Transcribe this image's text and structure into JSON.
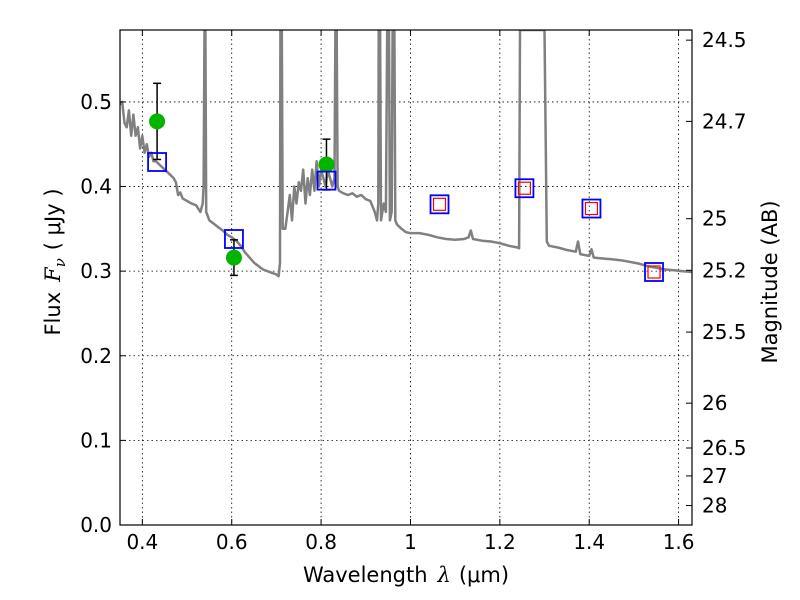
{
  "chart_data": {
    "type": "scatter",
    "xlabel": {
      "text": "Wavelength",
      "symbol": "λ",
      "unit": "(μm)"
    },
    "ylabel": {
      "text": "Flux",
      "symbol": "F",
      "subscript": "ν",
      "unit": "( μJy )"
    },
    "y2label": "Magnitude (AB)",
    "xlim": [
      0.35,
      1.63
    ],
    "ylim": [
      0.0,
      0.585
    ],
    "x_ticks": [
      {
        "v": 0.4,
        "label": "0.4"
      },
      {
        "v": 0.6,
        "label": "0.6"
      },
      {
        "v": 0.8,
        "label": "0.8"
      },
      {
        "v": 1.0,
        "label": "1"
      },
      {
        "v": 1.2,
        "label": "1.2"
      },
      {
        "v": 1.4,
        "label": "1.4"
      },
      {
        "v": 1.6,
        "label": "1.6"
      }
    ],
    "y_ticks": [
      {
        "v": 0.0,
        "label": "0.0"
      },
      {
        "v": 0.1,
        "label": "0.1"
      },
      {
        "v": 0.2,
        "label": "0.2"
      },
      {
        "v": 0.3,
        "label": "0.3"
      },
      {
        "v": 0.4,
        "label": "0.4"
      },
      {
        "v": 0.5,
        "label": "0.5"
      }
    ],
    "y2_ticks": [
      {
        "label": "24.5",
        "flux": 0.573
      },
      {
        "label": "24.7",
        "flux": 0.477
      },
      {
        "label": "25",
        "flux": 0.362
      },
      {
        "label": "25.2",
        "flux": 0.301
      },
      {
        "label": "25.5",
        "flux": 0.228
      },
      {
        "label": "26",
        "flux": 0.144
      },
      {
        "label": "26.5",
        "flux": 0.091
      },
      {
        "label": "27",
        "flux": 0.058
      },
      {
        "label": "28",
        "flux": 0.023
      }
    ],
    "grid": true,
    "model_spectrum": {
      "color": "#808080",
      "points": [
        [
          0.35,
          0.497
        ],
        [
          0.355,
          0.5
        ],
        [
          0.36,
          0.475
        ],
        [
          0.365,
          0.47
        ],
        [
          0.37,
          0.49
        ],
        [
          0.375,
          0.46
        ],
        [
          0.38,
          0.485
        ],
        [
          0.385,
          0.46
        ],
        [
          0.39,
          0.47
        ],
        [
          0.395,
          0.445
        ],
        [
          0.4,
          0.46
        ],
        [
          0.405,
          0.44
        ],
        [
          0.41,
          0.45
        ],
        [
          0.415,
          0.435
        ],
        [
          0.42,
          0.44
        ],
        [
          0.425,
          0.43
        ],
        [
          0.43,
          0.43
        ],
        [
          0.44,
          0.425
        ],
        [
          0.45,
          0.42
        ],
        [
          0.46,
          0.415
        ],
        [
          0.47,
          0.41
        ],
        [
          0.475,
          0.405
        ],
        [
          0.48,
          0.39
        ],
        [
          0.485,
          0.393
        ],
        [
          0.49,
          0.386
        ],
        [
          0.5,
          0.383
        ],
        [
          0.51,
          0.38
        ],
        [
          0.52,
          0.378
        ],
        [
          0.53,
          0.37
        ],
        [
          0.535,
          0.38
        ],
        [
          0.537,
          0.4
        ],
        [
          0.539,
          0.585
        ],
        [
          0.541,
          0.585
        ],
        [
          0.543,
          0.37
        ],
        [
          0.55,
          0.36
        ],
        [
          0.56,
          0.356
        ],
        [
          0.57,
          0.352
        ],
        [
          0.58,
          0.348
        ],
        [
          0.59,
          0.343
        ],
        [
          0.6,
          0.34
        ],
        [
          0.61,
          0.336
        ],
        [
          0.62,
          0.33
        ],
        [
          0.63,
          0.322
        ],
        [
          0.64,
          0.316
        ],
        [
          0.65,
          0.31
        ],
        [
          0.66,
          0.306
        ],
        [
          0.67,
          0.302
        ],
        [
          0.68,
          0.3
        ],
        [
          0.69,
          0.298
        ],
        [
          0.7,
          0.296
        ],
        [
          0.705,
          0.294
        ],
        [
          0.708,
          0.31
        ],
        [
          0.709,
          0.585
        ],
        [
          0.712,
          0.585
        ],
        [
          0.714,
          0.35
        ],
        [
          0.72,
          0.35
        ],
        [
          0.725,
          0.37
        ],
        [
          0.73,
          0.39
        ],
        [
          0.735,
          0.36
        ],
        [
          0.74,
          0.4
        ],
        [
          0.745,
          0.38
        ],
        [
          0.75,
          0.405
        ],
        [
          0.755,
          0.395
        ],
        [
          0.76,
          0.42
        ],
        [
          0.765,
          0.38
        ],
        [
          0.77,
          0.41
        ],
        [
          0.775,
          0.39
        ],
        [
          0.78,
          0.42
        ],
        [
          0.785,
          0.395
        ],
        [
          0.79,
          0.43
        ],
        [
          0.795,
          0.4
        ],
        [
          0.8,
          0.42
        ],
        [
          0.81,
          0.4
        ],
        [
          0.815,
          0.42
        ],
        [
          0.82,
          0.41
        ],
        [
          0.825,
          0.4
        ],
        [
          0.83,
          0.41
        ],
        [
          0.832,
          0.585
        ],
        [
          0.835,
          0.585
        ],
        [
          0.837,
          0.4
        ],
        [
          0.84,
          0.395
        ],
        [
          0.85,
          0.392
        ],
        [
          0.86,
          0.39
        ],
        [
          0.87,
          0.392
        ],
        [
          0.88,
          0.388
        ],
        [
          0.89,
          0.39
        ],
        [
          0.9,
          0.385
        ],
        [
          0.91,
          0.383
        ],
        [
          0.92,
          0.37
        ],
        [
          0.925,
          0.36
        ],
        [
          0.928,
          0.38
        ],
        [
          0.929,
          0.585
        ],
        [
          0.932,
          0.585
        ],
        [
          0.934,
          0.36
        ],
        [
          0.94,
          0.38
        ],
        [
          0.945,
          0.37
        ],
        [
          0.948,
          0.585
        ],
        [
          0.952,
          0.585
        ],
        [
          0.954,
          0.36
        ],
        [
          0.958,
          0.37
        ],
        [
          0.96,
          0.585
        ],
        [
          0.964,
          0.585
        ],
        [
          0.966,
          0.36
        ],
        [
          0.97,
          0.355
        ],
        [
          0.98,
          0.35
        ],
        [
          0.99,
          0.346
        ],
        [
          1.0,
          0.345
        ],
        [
          1.02,
          0.345
        ],
        [
          1.04,
          0.343
        ],
        [
          1.06,
          0.34
        ],
        [
          1.08,
          0.338
        ],
        [
          1.1,
          0.337
        ],
        [
          1.12,
          0.338
        ],
        [
          1.13,
          0.34
        ],
        [
          1.135,
          0.348
        ],
        [
          1.14,
          0.338
        ],
        [
          1.16,
          0.336
        ],
        [
          1.18,
          0.335
        ],
        [
          1.2,
          0.333
        ],
        [
          1.22,
          0.33
        ],
        [
          1.24,
          0.328
        ],
        [
          1.243,
          0.327
        ],
        [
          1.245,
          0.585
        ],
        [
          1.3,
          0.585
        ],
        [
          1.305,
          0.335
        ],
        [
          1.31,
          0.33
        ],
        [
          1.33,
          0.328
        ],
        [
          1.35,
          0.325
        ],
        [
          1.37,
          0.323
        ],
        [
          1.375,
          0.335
        ],
        [
          1.38,
          0.32
        ],
        [
          1.4,
          0.318
        ],
        [
          1.405,
          0.326
        ],
        [
          1.41,
          0.316
        ],
        [
          1.43,
          0.315
        ],
        [
          1.45,
          0.314
        ],
        [
          1.47,
          0.313
        ],
        [
          1.49,
          0.311
        ],
        [
          1.51,
          0.309
        ],
        [
          1.53,
          0.306
        ],
        [
          1.55,
          0.304
        ],
        [
          1.57,
          0.302
        ],
        [
          1.59,
          0.301
        ],
        [
          1.61,
          0.3
        ],
        [
          1.63,
          0.299
        ]
      ]
    },
    "series": [
      {
        "marker": "circle",
        "color": "#00b400",
        "points": [
          {
            "x": 0.433,
            "y": 0.477,
            "err": 0.045
          },
          {
            "x": 0.605,
            "y": 0.316,
            "err": 0.021
          },
          {
            "x": 0.812,
            "y": 0.426,
            "err": 0.03
          }
        ]
      },
      {
        "marker": "square-open",
        "color": "#0000ff",
        "points": [
          {
            "x": 0.433,
            "y": 0.429
          },
          {
            "x": 0.605,
            "y": 0.338
          },
          {
            "x": 0.812,
            "y": 0.407
          },
          {
            "x": 1.065,
            "y": 0.379
          },
          {
            "x": 1.255,
            "y": 0.398
          },
          {
            "x": 1.405,
            "y": 0.374
          },
          {
            "x": 1.545,
            "y": 0.299
          }
        ]
      },
      {
        "marker": "square-open",
        "color": "#ff0000",
        "points": [
          {
            "x": 1.065,
            "y": 0.379
          },
          {
            "x": 1.255,
            "y": 0.398
          },
          {
            "x": 1.405,
            "y": 0.374
          },
          {
            "x": 1.545,
            "y": 0.299
          }
        ]
      }
    ]
  }
}
